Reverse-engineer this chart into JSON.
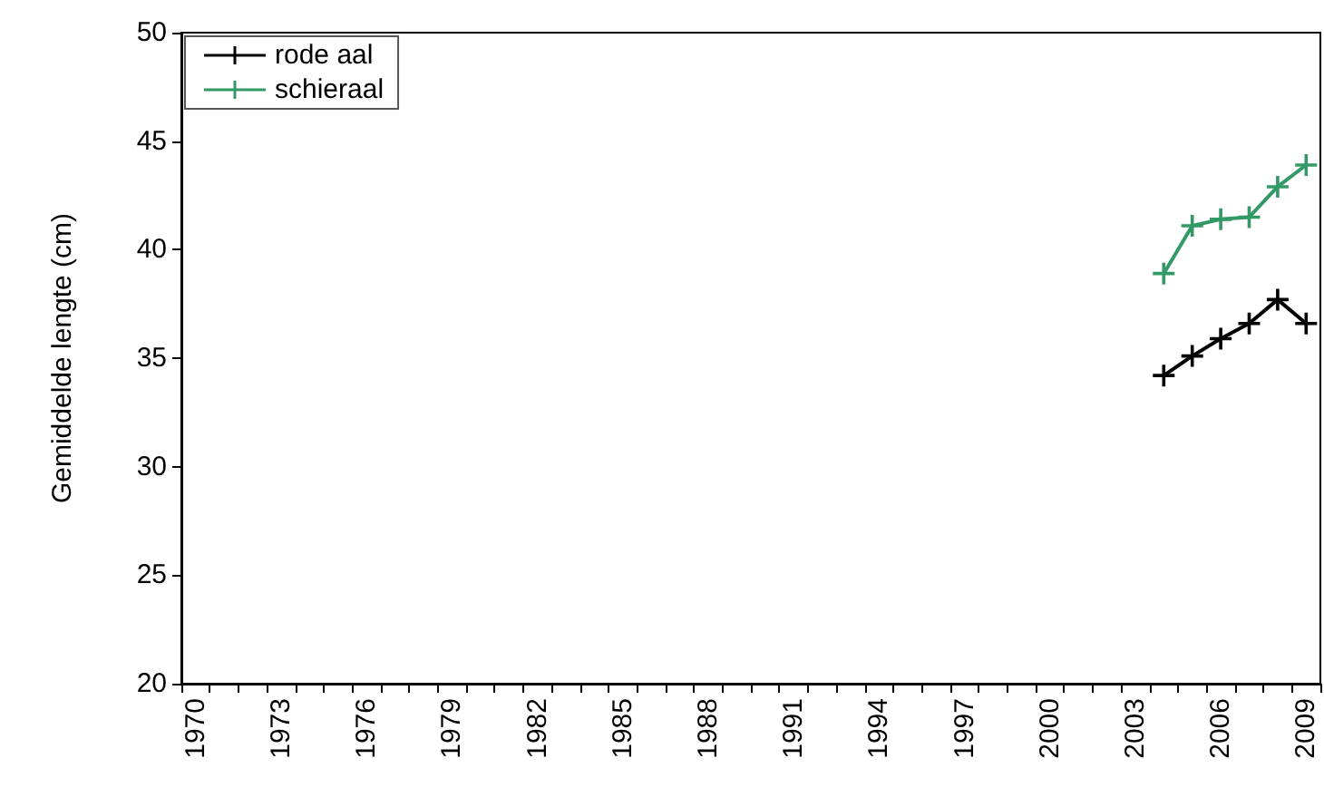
{
  "chart_data": {
    "type": "line",
    "ylabel": "Gemiddelde lengte (cm)",
    "categories": [
      "1970",
      null,
      null,
      "1973",
      null,
      null,
      "1976",
      null,
      null,
      "1979",
      null,
      null,
      "1982",
      null,
      null,
      "1985",
      null,
      null,
      "1988",
      null,
      null,
      "1991",
      null,
      null,
      "1994",
      null,
      null,
      "1997",
      null,
      null,
      "2000",
      null,
      null,
      "2003",
      null,
      null,
      "2006",
      null,
      null,
      "2009"
    ],
    "series": [
      {
        "name": "rode aal",
        "color": "#000000",
        "values": [
          null,
          null,
          null,
          null,
          null,
          null,
          null,
          null,
          null,
          null,
          null,
          null,
          null,
          null,
          null,
          null,
          null,
          null,
          null,
          null,
          null,
          null,
          null,
          null,
          null,
          null,
          null,
          null,
          null,
          null,
          null,
          null,
          null,
          null,
          34.2,
          35.1,
          35.9,
          36.6,
          37.7,
          36.6
        ]
      },
      {
        "name": "schieraal",
        "color": "#339966",
        "values": [
          null,
          null,
          null,
          null,
          null,
          null,
          null,
          null,
          null,
          null,
          null,
          null,
          null,
          null,
          null,
          null,
          null,
          null,
          null,
          null,
          null,
          null,
          null,
          null,
          null,
          null,
          null,
          null,
          null,
          null,
          null,
          null,
          null,
          null,
          38.9,
          41.1,
          41.4,
          41.5,
          42.9,
          43.9
        ]
      }
    ],
    "ylim": [
      20,
      50
    ],
    "yticks": [
      20,
      25,
      30,
      35,
      40,
      45,
      50
    ],
    "grid": false,
    "legend": "top left",
    "marker": "cross",
    "line_style": "solid"
  }
}
